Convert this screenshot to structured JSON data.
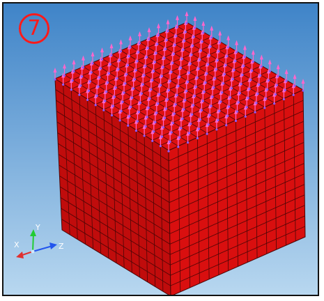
{
  "viewport": {
    "step_marker": "7",
    "background_top": "#3f84c8",
    "background_bottom": "#b9d8f0",
    "mesh_divisions": 14
  },
  "model": {
    "element_color": "#dd1111",
    "element_color_shade": "#c00c0c",
    "element_color_side": "#d90f0f",
    "mesh_line_color": "#4a0606",
    "load_arrow_color": "#ff66cc",
    "load_node_color": "#8a5cff"
  },
  "triad": {
    "x_label": "X",
    "y_label": "Y",
    "z_label": "Z",
    "x_color": "#e03030",
    "y_color": "#22cc33",
    "z_color": "#2255ee"
  }
}
